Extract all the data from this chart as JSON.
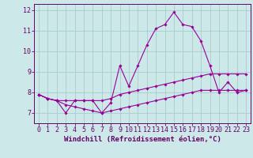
{
  "xlabel": "Windchill (Refroidissement éolien,°C)",
  "x_labels": [
    "0",
    "1",
    "2",
    "3",
    "4",
    "5",
    "6",
    "7",
    "8",
    "9",
    "10",
    "11",
    "12",
    "13",
    "14",
    "15",
    "16",
    "17",
    "18",
    "19",
    "20",
    "21",
    "22",
    "23"
  ],
  "ylim": [
    6.5,
    12.3
  ],
  "xlim": [
    -0.5,
    23.5
  ],
  "yticks": [
    7,
    8,
    9,
    10,
    11,
    12
  ],
  "line1": [
    7.9,
    7.7,
    7.6,
    7.0,
    7.6,
    7.6,
    7.6,
    7.0,
    7.5,
    9.3,
    8.3,
    9.3,
    10.3,
    11.1,
    11.3,
    11.9,
    11.3,
    11.2,
    10.5,
    9.3,
    8.0,
    8.5,
    8.0,
    8.1
  ],
  "line2": [
    7.9,
    7.7,
    7.6,
    7.6,
    7.6,
    7.6,
    7.6,
    7.6,
    7.7,
    7.9,
    8.0,
    8.1,
    8.2,
    8.3,
    8.4,
    8.5,
    8.6,
    8.7,
    8.8,
    8.9,
    8.9,
    8.9,
    8.9,
    8.9
  ],
  "line3": [
    7.9,
    7.7,
    7.6,
    7.4,
    7.3,
    7.2,
    7.1,
    7.0,
    7.1,
    7.2,
    7.3,
    7.4,
    7.5,
    7.6,
    7.7,
    7.8,
    7.9,
    8.0,
    8.1,
    8.1,
    8.1,
    8.1,
    8.1,
    8.1
  ],
  "line_color": "#990099",
  "bg_color": "#cce8e8",
  "grid_color": "#aacccc",
  "axis_color": "#660066",
  "label_fontsize": 6.5,
  "tick_fontsize": 6.0
}
